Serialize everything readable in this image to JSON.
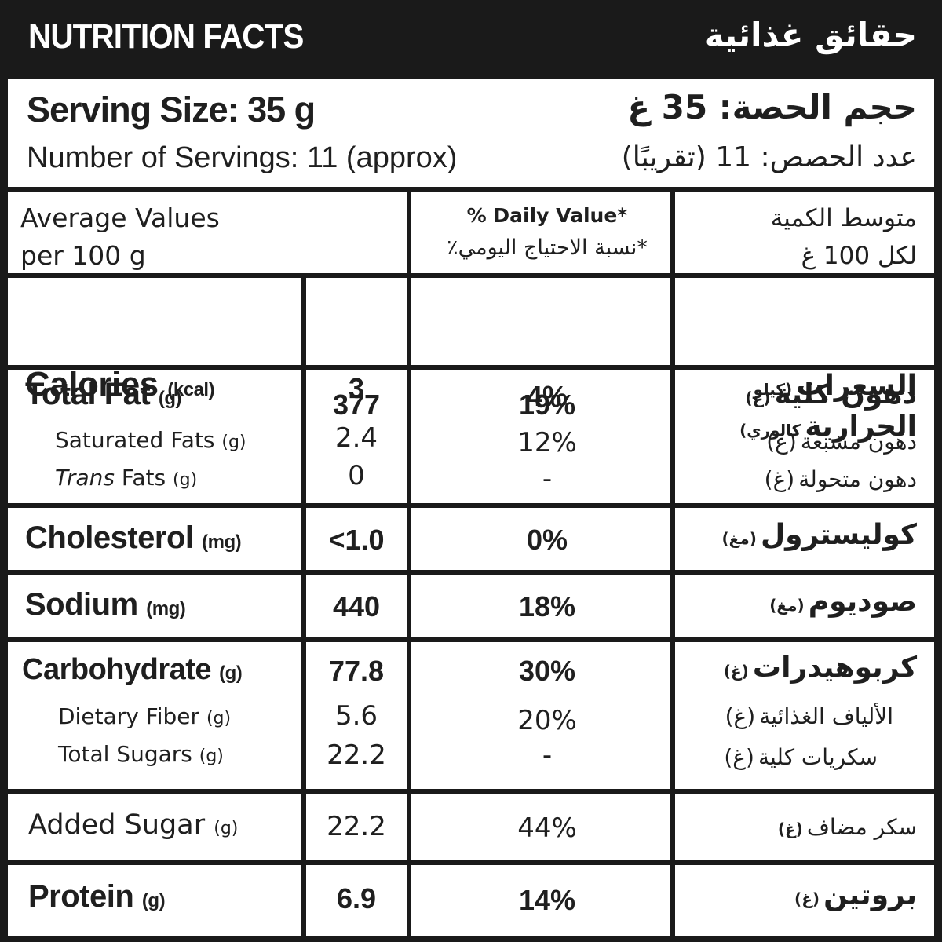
{
  "header": {
    "title_en": "NUTRITION FACTS",
    "title_ar": "حقائق غذائية"
  },
  "serving": {
    "size_en": "Serving Size: 35 g",
    "count_en": "Number of Servings: 11 (approx)",
    "size_ar": "حجم الحصة: 35 غ",
    "count_ar": "عدد الحصص: 11 (تقريبًا)"
  },
  "columns": {
    "avg_en_1": "Average Values",
    "avg_en_2": "per 100 g",
    "dv_en": "% Daily Value*",
    "dv_ar": "*نسبة الاحتياج اليومي٪",
    "avg_ar_1": "متوسط الكمية",
    "avg_ar_2": "لكل 100 غ"
  },
  "rows": {
    "calories": {
      "en": "Calories",
      "unit_en": "(kcal)",
      "value": "377",
      "dv": "19%",
      "ar_1": "السعرات",
      "ar_unit_1": "(كيلو",
      "ar_2": "الحرارية",
      "ar_unit_2": "كالوري)"
    },
    "total_fat": {
      "en": "Total Fat",
      "unit_en": "(g)",
      "value": "3",
      "dv": "4%",
      "ar": "دهون كلية",
      "ar_unit": "(غ)"
    },
    "saturated_fats": {
      "en": "Saturated Fats",
      "unit_en": "(g)",
      "value": "2.4",
      "dv": "12%",
      "ar": "دهون مشبعة",
      "ar_unit": "(غ)"
    },
    "trans_fats": {
      "en_italic": "Trans",
      "en": "Fats",
      "unit_en": "(g)",
      "value": "0",
      "dv": "-",
      "ar": "دهون متحولة",
      "ar_unit": "(غ)"
    },
    "cholesterol": {
      "en": "Cholesterol",
      "unit_en": "(mg)",
      "value": "<1.0",
      "dv": "0%",
      "ar": "كوليسترول",
      "ar_unit": "(مغ)"
    },
    "sodium": {
      "en": "Sodium",
      "unit_en": "(mg)",
      "value": "440",
      "dv": "18%",
      "ar": "صوديوم",
      "ar_unit": "(مغ)"
    },
    "carbohydrate": {
      "en": "Carbohydrate",
      "unit_en": "(g)",
      "value": "77.8",
      "dv": "30%",
      "ar": "كربوهيدرات",
      "ar_unit": "(غ)"
    },
    "dietary_fiber": {
      "en": "Dietary Fiber",
      "unit_en": "(g)",
      "value": "5.6",
      "dv": "20%",
      "ar": "الألياف الغذائية",
      "ar_unit": "(غ)"
    },
    "total_sugars": {
      "en": "Total Sugars",
      "unit_en": "(g)",
      "value": "22.2",
      "dv": "-",
      "ar": "سكريات كلية",
      "ar_unit": "(غ)"
    },
    "added_sugar": {
      "en": "Added Sugar",
      "unit_en": "(g)",
      "value": "22.2",
      "dv": "44%",
      "ar": "سكر مضاف",
      "ar_unit": "(غ)"
    },
    "protein": {
      "en": "Protein",
      "unit_en": "(g)",
      "value": "6.9",
      "dv": "14%",
      "ar": "بروتين",
      "ar_unit": "(غ)"
    }
  },
  "colors": {
    "ink": "#1a1a1a",
    "paper": "#ffffff"
  }
}
